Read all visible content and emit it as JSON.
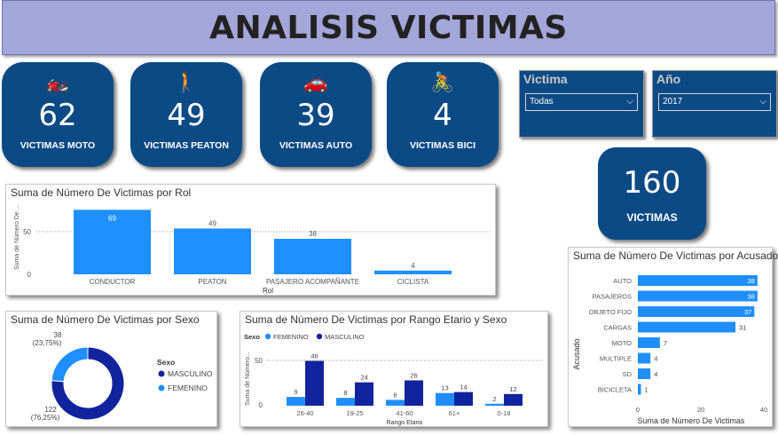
{
  "header": {
    "title": "ANALISIS VICTIMAS"
  },
  "kpis": [
    {
      "emoji": "🏍️",
      "icon": "motorcycle-icon",
      "value": "62",
      "label": "VICTIMAS MOTO"
    },
    {
      "emoji": "🚶",
      "icon": "pedestrian-icon",
      "value": "49",
      "label": "VICTIMAS PEATON"
    },
    {
      "emoji": "🚗",
      "icon": "car-icon",
      "value": "39",
      "label": "VICTIMAS AUTO"
    },
    {
      "emoji": "🚴",
      "icon": "bicycle-icon",
      "value": "4",
      "label": "VICTIMAS BICI"
    }
  ],
  "total": {
    "value": "160",
    "label": "VICTIMAS"
  },
  "slicers": {
    "victima": {
      "title": "Victima",
      "selected": "Todas"
    },
    "anio": {
      "title": "Año",
      "selected": "2017"
    }
  },
  "colors": {
    "primary": "#1f8fff",
    "dark": "#12239e",
    "kpi_bg": "#0c4a85",
    "header_bg": "#a3a6d9"
  },
  "chart_rol": {
    "title": "Suma de Número De Victimas por Rol",
    "ylabel": "Suma de Número De ...",
    "xlabel": "Rol",
    "yticks": [
      "50",
      "0"
    ]
  },
  "chart_sexo": {
    "title": "Suma de Número De Victimas por Sexo",
    "legend_title": "Sexo",
    "label_top": "38",
    "label_top_pct": "(23,75%)",
    "label_bottom": "122",
    "label_bottom_pct": "(76,25%)"
  },
  "chart_rango": {
    "title": "Suma de Número De Victimas por Rango Etario y Sexo",
    "legend_title": "Sexo",
    "ylabel": "Suma de Número...",
    "xlabel": "Rango Etario",
    "yticks": [
      "50",
      "0"
    ]
  },
  "chart_acusado": {
    "title": "Suma de Número De Victimas por Acusado",
    "ylabel": "Acusado",
    "xlabel": "Suma de Número De Victimas",
    "xticks": [
      "0",
      "20",
      "40"
    ]
  },
  "chart_data": [
    {
      "type": "bar",
      "title": "Suma de Número De Victimas por Rol",
      "categories": [
        "CONDUCTOR",
        "PEATON",
        "PASAJERO_ACOMPAÑANTE",
        "CICLISTA"
      ],
      "values": [
        69,
        49,
        38,
        4
      ],
      "xlabel": "Rol",
      "ylabel": "Suma de Número De ...",
      "ylim": [
        0,
        75
      ],
      "grid": true
    },
    {
      "type": "pie",
      "title": "Suma de Número De Victimas por Sexo",
      "categories": [
        "MASCULINO",
        "FEMENINO"
      ],
      "values": [
        122,
        38
      ],
      "percent_labels": [
        "(76,25%)",
        "(23,75%)"
      ],
      "legend": "right"
    },
    {
      "type": "bar",
      "title": "Suma de Número De Victimas por Rango Etario y Sexo",
      "categories": [
        "26-40",
        "19-25",
        "41-60",
        "61+",
        "0-18"
      ],
      "series": [
        {
          "name": "FEMENINO",
          "values": [
            9,
            8,
            6,
            13,
            2
          ]
        },
        {
          "name": "MASCULINO",
          "values": [
            46,
            24,
            26,
            14,
            12
          ]
        }
      ],
      "xlabel": "Rango Etario",
      "ylabel": "Suma de Número...",
      "ylim": [
        0,
        55
      ],
      "legend": "top-left",
      "grid": true
    },
    {
      "type": "bar",
      "orientation": "horizontal",
      "title": "Suma de Número De Victimas por Acusado",
      "categories": [
        "AUTO",
        "PASAJEROS",
        "OBJETO FIJO",
        "CARGAS",
        "MOTO",
        "MULTIPLE",
        "SD",
        "BICICLETA"
      ],
      "category_labels": [
        "AUTO",
        "PASAJEROS",
        "OBJETO FIJO",
        "CARGAS",
        "MOTO",
        "MULTIPLE",
        "SD",
        "BICICLETA"
      ],
      "values": [
        38,
        38,
        37,
        31,
        7,
        4,
        4,
        1
      ],
      "xlabel": "Suma de Número De Victimas",
      "ylabel": "Acusado",
      "xlim": [
        0,
        40
      ]
    }
  ]
}
